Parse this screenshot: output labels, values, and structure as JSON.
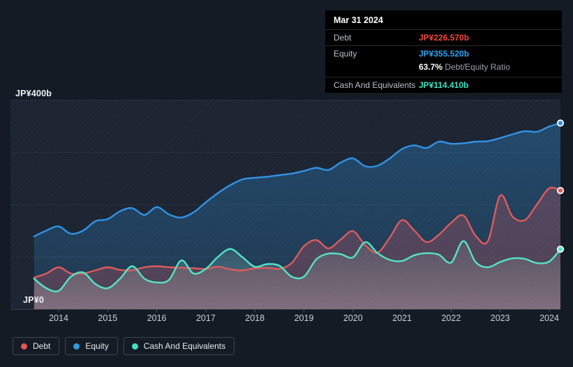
{
  "page": {
    "background": "#151b24"
  },
  "tooltip": {
    "date": "Mar 31 2024",
    "rows": [
      {
        "label": "Debt",
        "value": "JP¥226.570b",
        "color": "#f4473d"
      },
      {
        "label": "Equity",
        "value": "JP¥355.520b",
        "color": "#2ea3f2"
      },
      {
        "label": "Cash And Equivalents",
        "value": "JP¥114.410b",
        "color": "#3ce2c2"
      }
    ],
    "ratio": {
      "value": "63.7%",
      "label": "Debt/Equity Ratio"
    }
  },
  "y_axis": {
    "top": "JP¥400b",
    "bottom": "JP¥0"
  },
  "x_axis": {
    "years": [
      "2014",
      "2015",
      "2016",
      "2017",
      "2018",
      "2019",
      "2020",
      "2021",
      "2022",
      "2023",
      "2024"
    ]
  },
  "legend": {
    "items": [
      {
        "label": "Debt",
        "color": "#e25550"
      },
      {
        "label": "Equity",
        "color": "#2d9cdb"
      },
      {
        "label": "Cash And Equivalents",
        "color": "#41dfc0"
      }
    ]
  },
  "chart_data": {
    "type": "area",
    "title": "Debt to Equity History (JP¥ billions)",
    "unit": "JP¥ billions",
    "ylim": [
      0,
      400
    ],
    "gridlines_b": [
      0,
      100,
      200,
      300,
      400
    ],
    "x_years": [
      2013.5,
      2013.75,
      2014,
      2014.25,
      2014.5,
      2014.75,
      2015,
      2015.25,
      2015.5,
      2015.75,
      2016,
      2016.25,
      2016.5,
      2016.75,
      2017,
      2017.25,
      2017.5,
      2017.75,
      2018,
      2018.25,
      2018.5,
      2018.75,
      2019,
      2019.25,
      2019.5,
      2019.75,
      2020,
      2020.25,
      2020.5,
      2020.75,
      2021,
      2021.25,
      2021.5,
      2021.75,
      2022,
      2022.25,
      2022.5,
      2022.75,
      2023,
      2023.25,
      2023.5,
      2023.75,
      2024,
      2024.25
    ],
    "series": [
      {
        "name": "Debt",
        "color": "#dd5b5b",
        "fill_top": "rgba(214,85,95,0.27)",
        "fill_bottom": "rgba(214,85,95,0.27)",
        "values": [
          60,
          68,
          80,
          68,
          68,
          74,
          80,
          75,
          74,
          80,
          82,
          80,
          79,
          78,
          77,
          81,
          76,
          74,
          78,
          79,
          77,
          88,
          120,
          132,
          116,
          133,
          149,
          122,
          108,
          137,
          170,
          150,
          128,
          142,
          165,
          179,
          140,
          130,
          217,
          177,
          170,
          200,
          231,
          226.57
        ]
      },
      {
        "name": "Equity",
        "color": "#3093e6",
        "fill_top": "rgba(47,134,202,0.38)",
        "fill_bottom": "rgba(47,134,202,0.20)",
        "values": [
          139,
          150,
          158,
          144,
          150,
          168,
          172,
          187,
          193,
          180,
          195,
          181,
          175,
          185,
          204,
          222,
          237,
          248,
          251,
          253,
          256,
          259,
          264,
          270,
          266,
          280,
          288,
          273,
          274,
          288,
          306,
          313,
          308,
          320,
          316,
          317,
          320,
          321,
          327,
          334,
          340,
          339,
          349,
          355.52
        ]
      },
      {
        "name": "Cash And Equivalents",
        "color": "#53e5c5",
        "fill_top": "rgba(125,215,195,0.13)",
        "fill_bottom": "rgba(186,205,209,0.42)",
        "values": [
          58,
          40,
          35,
          62,
          70,
          48,
          40,
          58,
          82,
          58,
          51,
          56,
          93,
          68,
          77,
          100,
          115,
          99,
          81,
          86,
          83,
          62,
          62,
          95,
          106,
          105,
          99,
          128,
          107,
          94,
          92,
          103,
          107,
          104,
          89,
          130,
          90,
          80,
          90,
          97,
          96,
          88,
          91,
          114.41
        ]
      }
    ],
    "final_values": {
      "date": "Mar 31 2024",
      "debt": 226.57,
      "equity": 355.52,
      "cash_and_equivalents": 114.41,
      "debt_equity_ratio_pct": 63.7
    },
    "legend_position": "bottom-left",
    "grid": "horizontal-only"
  }
}
